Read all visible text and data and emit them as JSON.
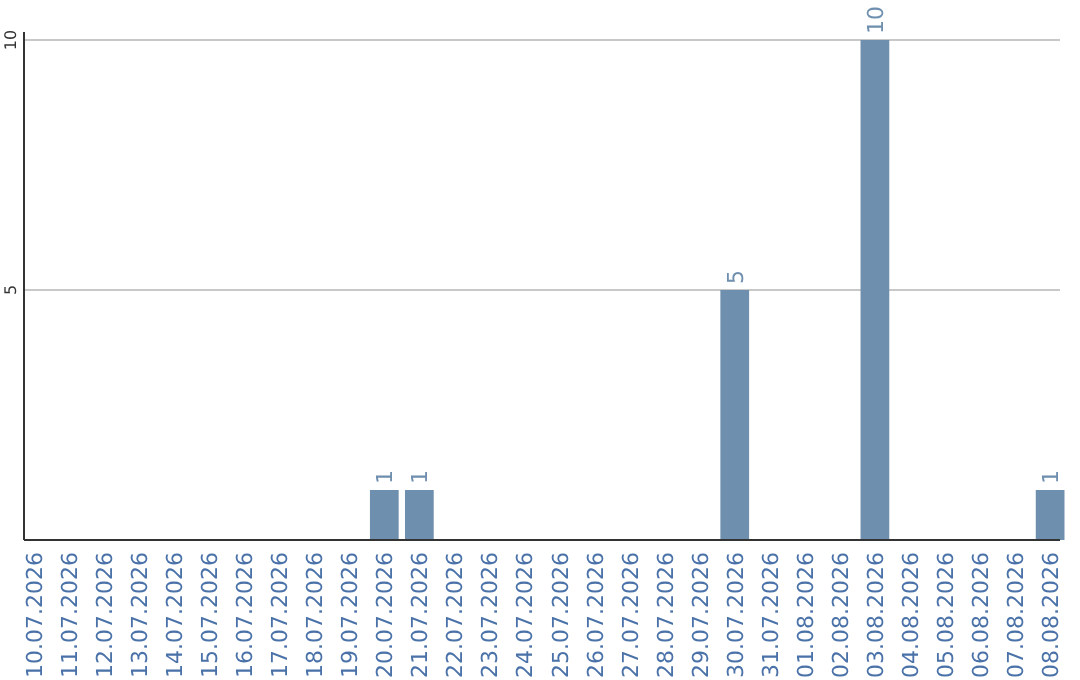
{
  "chart_data": {
    "type": "bar",
    "categories": [
      "10.07.2026",
      "11.07.2026",
      "12.07.2026",
      "13.07.2026",
      "14.07.2026",
      "15.07.2026",
      "16.07.2026",
      "17.07.2026",
      "18.07.2026",
      "19.07.2026",
      "20.07.2026",
      "21.07.2026",
      "22.07.2026",
      "23.07.2026",
      "24.07.2026",
      "25.07.2026",
      "26.07.2026",
      "27.07.2026",
      "28.07.2026",
      "29.07.2026",
      "30.07.2026",
      "31.07.2026",
      "01.08.2026",
      "02.08.2026",
      "03.08.2026",
      "04.08.2026",
      "05.08.2026",
      "06.08.2026",
      "07.08.2026",
      "08.08.2026"
    ],
    "values": [
      0,
      0,
      0,
      0,
      0,
      0,
      0,
      0,
      0,
      0,
      1,
      1,
      0,
      0,
      0,
      0,
      0,
      0,
      0,
      0,
      5,
      0,
      0,
      0,
      10,
      0,
      0,
      0,
      0,
      1
    ],
    "value_labels": [
      null,
      null,
      null,
      null,
      null,
      null,
      null,
      null,
      null,
      null,
      "1",
      "1",
      null,
      null,
      null,
      null,
      null,
      null,
      null,
      null,
      "5",
      null,
      null,
      null,
      "10",
      null,
      null,
      null,
      null,
      "1"
    ],
    "color": "#6f8fae",
    "ylim": [
      0,
      10
    ],
    "yticks": [
      5,
      10
    ],
    "grid": "y"
  }
}
